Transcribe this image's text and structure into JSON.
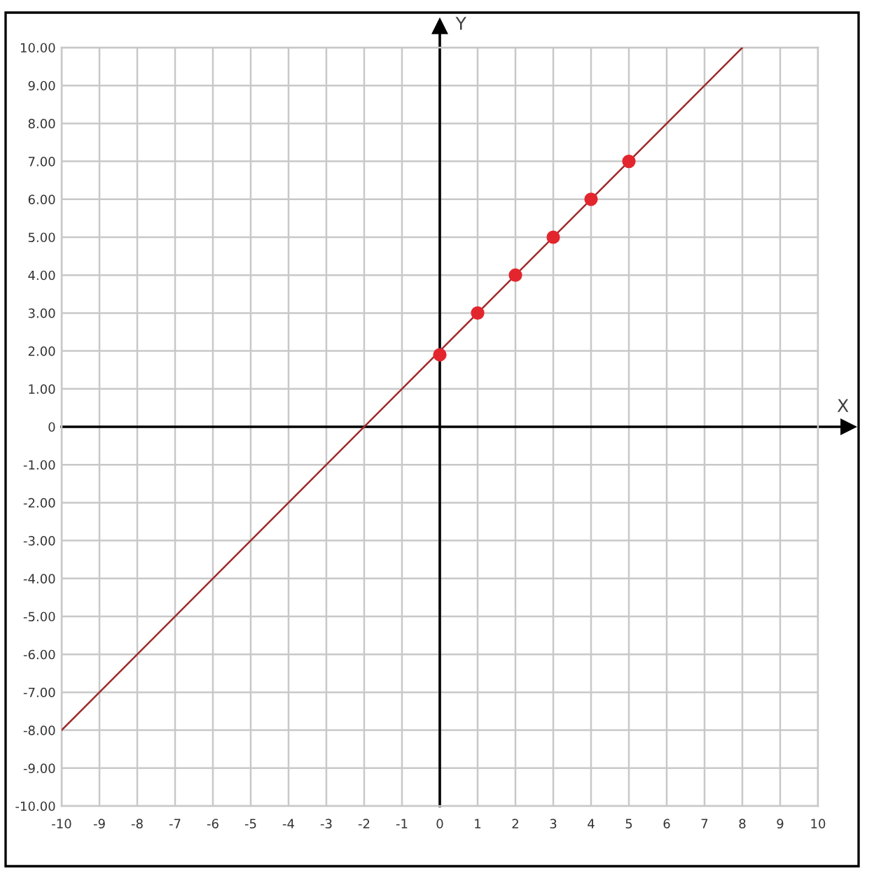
{
  "chart_data": {
    "type": "line",
    "xlabel": "X",
    "ylabel": "Y",
    "xlim": [
      -10,
      10
    ],
    "ylim": [
      -10,
      10
    ],
    "xticks": [
      -10,
      -9,
      -8,
      -7,
      -6,
      -5,
      -4,
      -3,
      -2,
      -1,
      0,
      1,
      2,
      3,
      4,
      5,
      6,
      7,
      8,
      9,
      10
    ],
    "yticks": [
      {
        "value": -10,
        "label": "-10.00"
      },
      {
        "value": -9,
        "label": "-9.00"
      },
      {
        "value": -8,
        "label": "-8.00"
      },
      {
        "value": -7,
        "label": "-7.00"
      },
      {
        "value": -6,
        "label": "-6.00"
      },
      {
        "value": -5,
        "label": "-5.00"
      },
      {
        "value": -4,
        "label": "-4.00"
      },
      {
        "value": -3,
        "label": "-3.00"
      },
      {
        "value": -2,
        "label": "-2.00"
      },
      {
        "value": -1,
        "label": "-1.00"
      },
      0,
      {
        "value": 1,
        "label": "1.00"
      },
      {
        "value": 2,
        "label": "2.00"
      },
      {
        "value": 3,
        "label": "3.00"
      },
      {
        "value": 4,
        "label": "4.00"
      },
      {
        "value": 5,
        "label": "5.00"
      },
      {
        "value": 6,
        "label": "6.00"
      },
      {
        "value": 7,
        "label": "7.00"
      },
      {
        "value": 8,
        "label": "8.00"
      },
      {
        "value": 9,
        "label": "9.00"
      },
      {
        "value": 10,
        "label": "10.00"
      }
    ],
    "grid": true,
    "series": [
      {
        "x": [
          -10,
          8
        ],
        "values": [
          -8,
          10
        ],
        "color": "#9e2a2b"
      },
      {
        "type": "scatter",
        "x": [
          0,
          1,
          2,
          3,
          4,
          5
        ],
        "values": [
          1.9,
          3,
          4,
          5,
          6,
          7
        ],
        "color": "#e3262e",
        "marker": "circle"
      }
    ]
  }
}
